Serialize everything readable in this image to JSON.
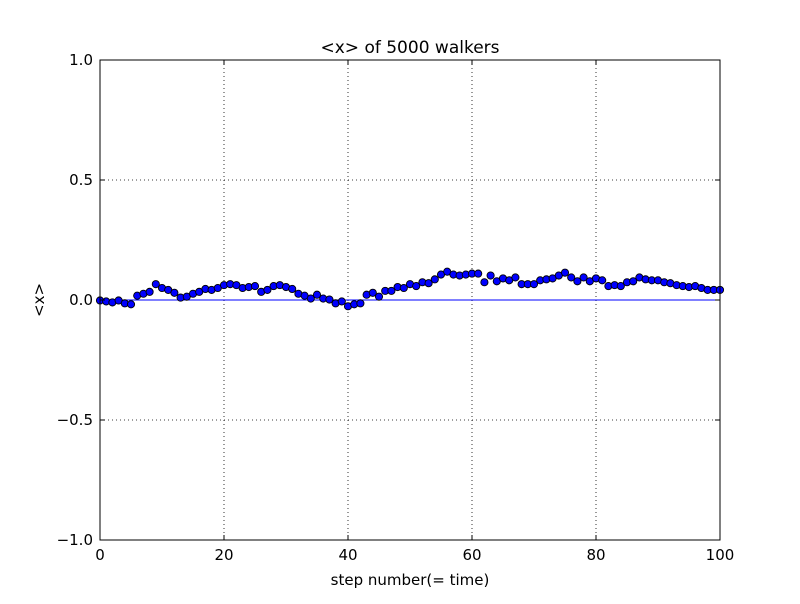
{
  "chart_data": {
    "type": "scatter",
    "title": "<x> of 5000 walkers",
    "xlabel": "step number(= time)",
    "ylabel": "<x>",
    "xlim": [
      0,
      100
    ],
    "ylim": [
      -1.0,
      1.0
    ],
    "grid": true,
    "xticks": [
      0,
      20,
      40,
      60,
      80,
      100
    ],
    "xtick_labels": [
      "0",
      "20",
      "40",
      "60",
      "80",
      "100"
    ],
    "yticks": [
      -1.0,
      -0.5,
      0.0,
      0.5,
      1.0
    ],
    "ytick_labels": [
      "−1.0",
      "−0.5",
      "0.0",
      "0.5",
      "1.0"
    ],
    "reference_line": {
      "y": 0.0,
      "color": "#0000ff"
    },
    "marker_color": "#0000ff",
    "series": [
      {
        "x": [
          0,
          1,
          2,
          3,
          4,
          5,
          6,
          7,
          8,
          9,
          10,
          11,
          12,
          13,
          14,
          15,
          16,
          17,
          18,
          19,
          20,
          21,
          22,
          23,
          24,
          25,
          26,
          27,
          28,
          29,
          30,
          31,
          32,
          33,
          34,
          35,
          36,
          37,
          38,
          39,
          40,
          41,
          42,
          43,
          44,
          45,
          46,
          47,
          48,
          49,
          50,
          51,
          52,
          53,
          54,
          55,
          56,
          57,
          58,
          59,
          60,
          61,
          62,
          63,
          64,
          65,
          66,
          67,
          68,
          69,
          70,
          71,
          72,
          73,
          74,
          75,
          76,
          77,
          78,
          79,
          80,
          81,
          82,
          83,
          84,
          85,
          86,
          87,
          88,
          89,
          90,
          91,
          92,
          93,
          94,
          95,
          96,
          97,
          98,
          99,
          100
        ],
        "y": [
          -0.002,
          -0.006,
          -0.01,
          -0.002,
          -0.014,
          -0.018,
          0.018,
          0.026,
          0.034,
          0.066,
          0.05,
          0.042,
          0.03,
          0.01,
          0.014,
          0.026,
          0.034,
          0.046,
          0.042,
          0.05,
          0.062,
          0.066,
          0.062,
          0.05,
          0.054,
          0.058,
          0.034,
          0.042,
          0.058,
          0.062,
          0.054,
          0.046,
          0.026,
          0.018,
          0.006,
          0.022,
          0.006,
          0.002,
          -0.014,
          -0.006,
          -0.026,
          -0.018,
          -0.014,
          0.022,
          0.03,
          0.014,
          0.038,
          0.038,
          0.054,
          0.05,
          0.066,
          0.058,
          0.074,
          0.07,
          0.086,
          0.106,
          0.118,
          0.106,
          0.102,
          0.106,
          0.11,
          0.11,
          0.074,
          0.102,
          0.078,
          0.09,
          0.082,
          0.094,
          0.066,
          0.066,
          0.066,
          0.082,
          0.086,
          0.09,
          0.102,
          0.114,
          0.094,
          0.078,
          0.094,
          0.078,
          0.09,
          0.082,
          0.058,
          0.062,
          0.058,
          0.074,
          0.078,
          0.094,
          0.086,
          0.082,
          0.082,
          0.074,
          0.07,
          0.062,
          0.058,
          0.054,
          0.058,
          0.05,
          0.042,
          0.042,
          0.042
        ]
      }
    ]
  }
}
